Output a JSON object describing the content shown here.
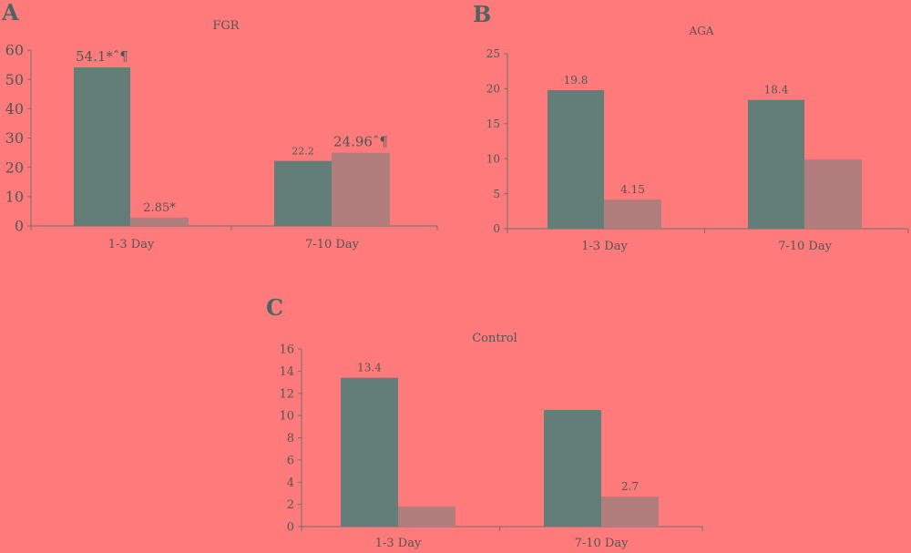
{
  "colors": {
    "background": "#ff7b7b",
    "bar_primary": "#637d79",
    "bar_secondary": "#b17d7d",
    "axis": "#6f7272",
    "text": "#4b5756",
    "panel_letter": "#4e6462"
  },
  "chart_data": [
    {
      "type": "bar",
      "panel_label": "A",
      "title": "FGR",
      "categories": [
        "1-3 Day",
        "7-10 Day"
      ],
      "series": [
        {
          "values": [
            54.1,
            22.2
          ],
          "labels": [
            "54.1*ˆ¶",
            "22.2"
          ]
        },
        {
          "values": [
            2.85,
            24.96
          ],
          "labels": [
            "2.85*",
            "24.96ˆ¶"
          ]
        }
      ],
      "ylim": [
        0,
        60
      ],
      "yticks": [
        0,
        10,
        20,
        30,
        40,
        50,
        60
      ],
      "xlabel": "",
      "ylabel": "",
      "grid": false,
      "legend": "none"
    },
    {
      "type": "bar",
      "panel_label": "B",
      "title": "AGA",
      "categories": [
        "1-3 Day",
        "7-10 Day"
      ],
      "series": [
        {
          "values": [
            19.8,
            18.4
          ],
          "labels": [
            "19.8",
            "18.4"
          ]
        },
        {
          "values": [
            4.15,
            9.9
          ],
          "labels": [
            "4.15",
            ""
          ]
        }
      ],
      "ylim": [
        0,
        25
      ],
      "yticks": [
        0,
        5,
        10,
        15,
        20,
        25
      ],
      "xlabel": "",
      "ylabel": "",
      "grid": false,
      "legend": "none"
    },
    {
      "type": "bar",
      "panel_label": "C",
      "title": "Control",
      "categories": [
        "1-3 Day",
        "7-10 Day"
      ],
      "series": [
        {
          "values": [
            13.4,
            10.5
          ],
          "labels": [
            "13.4",
            ""
          ]
        },
        {
          "values": [
            1.8,
            2.7
          ],
          "labels": [
            "",
            "2.7"
          ]
        }
      ],
      "ylim": [
        0,
        16
      ],
      "yticks": [
        0,
        2,
        4,
        6,
        8,
        10,
        12,
        14,
        16
      ],
      "xlabel": "",
      "ylabel": "",
      "grid": false,
      "legend": "none"
    }
  ]
}
